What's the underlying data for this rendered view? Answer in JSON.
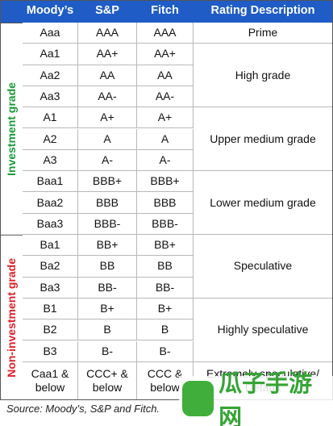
{
  "table": {
    "header": [
      "Moody’s",
      "S&P",
      "Fitch",
      "Rating Description"
    ],
    "groups": [
      "Investment grade",
      "Non-investment grade"
    ],
    "rows": [
      [
        "Aaa",
        "AAA",
        "AAA"
      ],
      [
        "Aa1",
        "AA+",
        "AA+"
      ],
      [
        "Aa2",
        "AA",
        "AA"
      ],
      [
        "Aa3",
        "AA-",
        "AA-"
      ],
      [
        "A1",
        "A+",
        "A+"
      ],
      [
        "A2",
        "A",
        "A"
      ],
      [
        "A3",
        "A-",
        "A-"
      ],
      [
        "Baa1",
        "BBB+",
        "BBB+"
      ],
      [
        "Baa2",
        "BBB",
        "BBB"
      ],
      [
        "Baa3",
        "BBB-",
        "BBB-"
      ],
      [
        "Ba1",
        "BB+",
        "BB+"
      ],
      [
        "Ba2",
        "BB",
        "BB"
      ],
      [
        "Ba3",
        "BB-",
        "BB-"
      ],
      [
        "B1",
        "B+",
        "B+"
      ],
      [
        "B2",
        "B",
        "B"
      ],
      [
        "B3",
        "B-",
        "B-"
      ],
      [
        "Caa1 & below",
        "CCC+ & below",
        "CCC & below"
      ]
    ],
    "descriptions": [
      "Prime",
      "High grade",
      "Upper medium grade",
      "Lower medium grade",
      "Speculative",
      "Highly speculative",
      "Extremely speculative/ Default"
    ]
  },
  "source": "Source: Moody’s, S&P and Fitch.",
  "watermark": "瓜子手游网"
}
